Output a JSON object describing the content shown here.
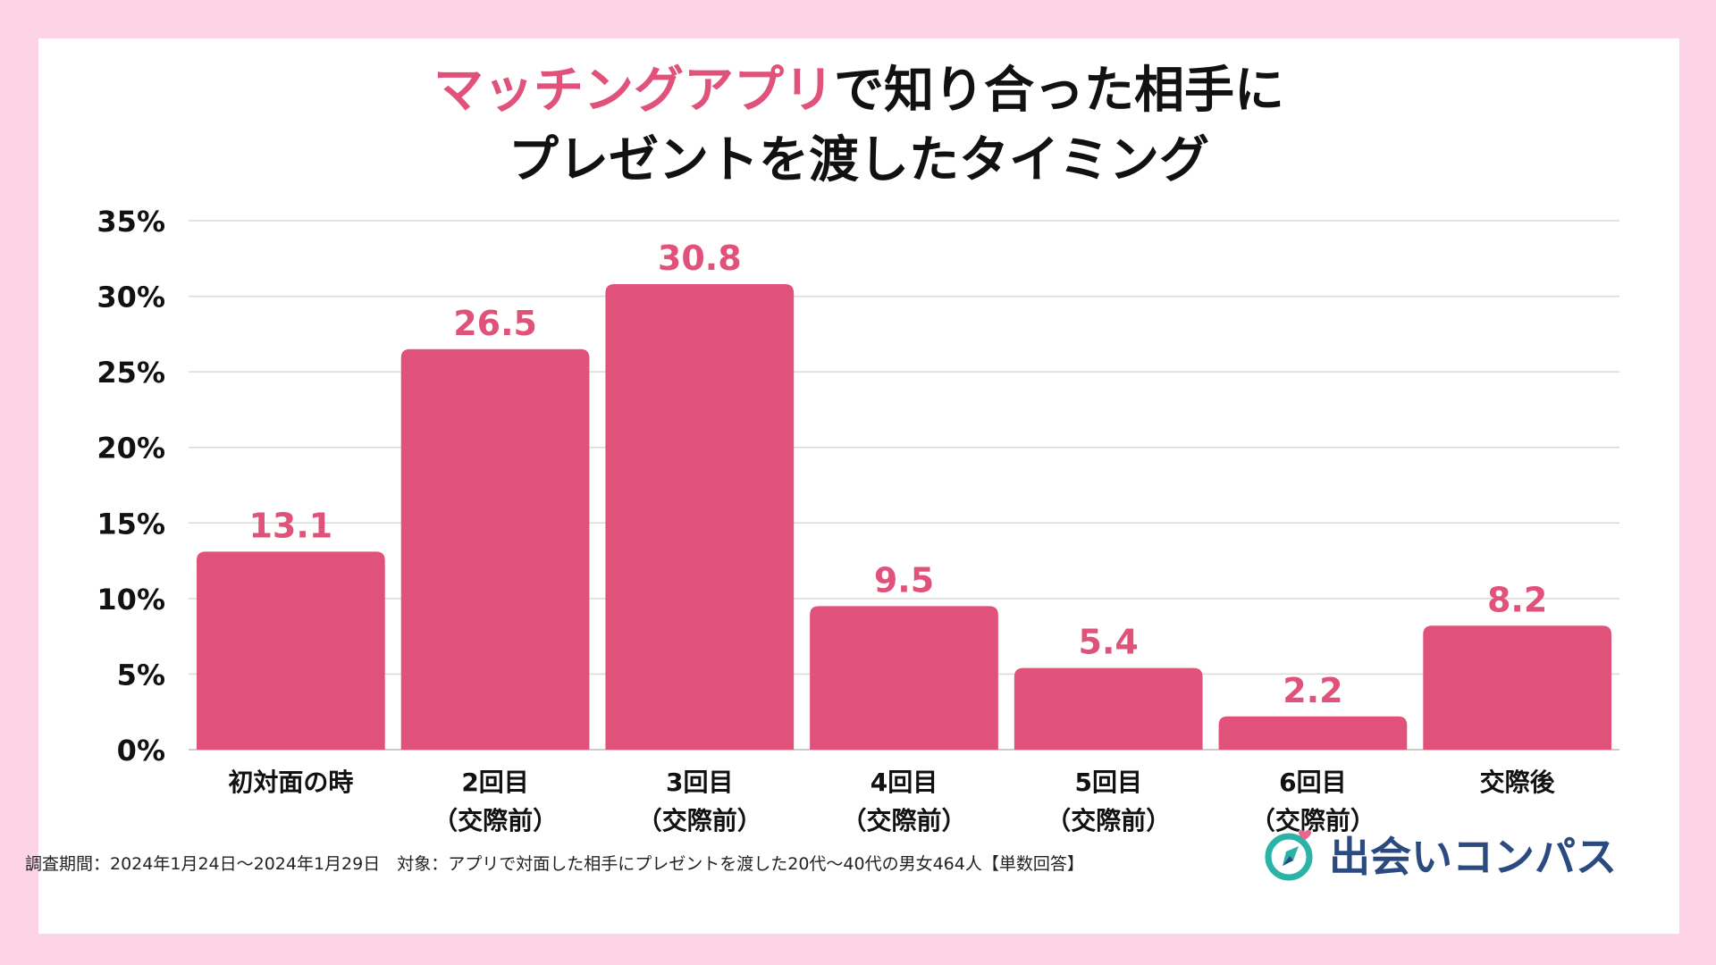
{
  "title": {
    "line1_accent": "マッチングアプリ",
    "line1_rest": "で知り合った相手に",
    "line2": "プレゼントを渡したタイミング"
  },
  "colors": {
    "bar": "#e0527a",
    "accent": "#e0527a",
    "background": "#fdd3e6",
    "grid": "#d9d9d9",
    "logo_teal": "#2bb3a8",
    "logo_navy": "#2b4a80"
  },
  "chart_data": {
    "type": "bar",
    "title": "マッチングアプリで知り合った相手にプレゼントを渡したタイミング",
    "categories": [
      [
        "初対面の時"
      ],
      [
        "2回目",
        "（交際前）"
      ],
      [
        "3回目",
        "（交際前）"
      ],
      [
        "4回目",
        "（交際前）"
      ],
      [
        "5回目",
        "（交際前）"
      ],
      [
        "6回目",
        "（交際前）"
      ],
      [
        "交際後"
      ]
    ],
    "values": [
      13.1,
      26.5,
      30.8,
      9.5,
      5.4,
      2.2,
      8.2
    ],
    "value_labels": [
      "13.1",
      "26.5",
      "30.8",
      "9.5",
      "5.4",
      "2.2",
      "8.2"
    ],
    "ylim": [
      0,
      35
    ],
    "yticks": [
      0,
      5,
      10,
      15,
      20,
      25,
      30,
      35
    ],
    "ytick_labels": [
      "0%",
      "5%",
      "10%",
      "15%",
      "20%",
      "25%",
      "30%",
      "35%"
    ],
    "xlabel": "",
    "ylabel": "",
    "grid": true
  },
  "footer": {
    "note": "調査期間：2024年1月24日〜2024年1月29日　対象：アプリで対面した相手にプレゼントを渡した20代〜40代の男女464人【単数回答】"
  },
  "logo": {
    "text": "出会いコンパス",
    "icon": "compass-heart-icon"
  }
}
